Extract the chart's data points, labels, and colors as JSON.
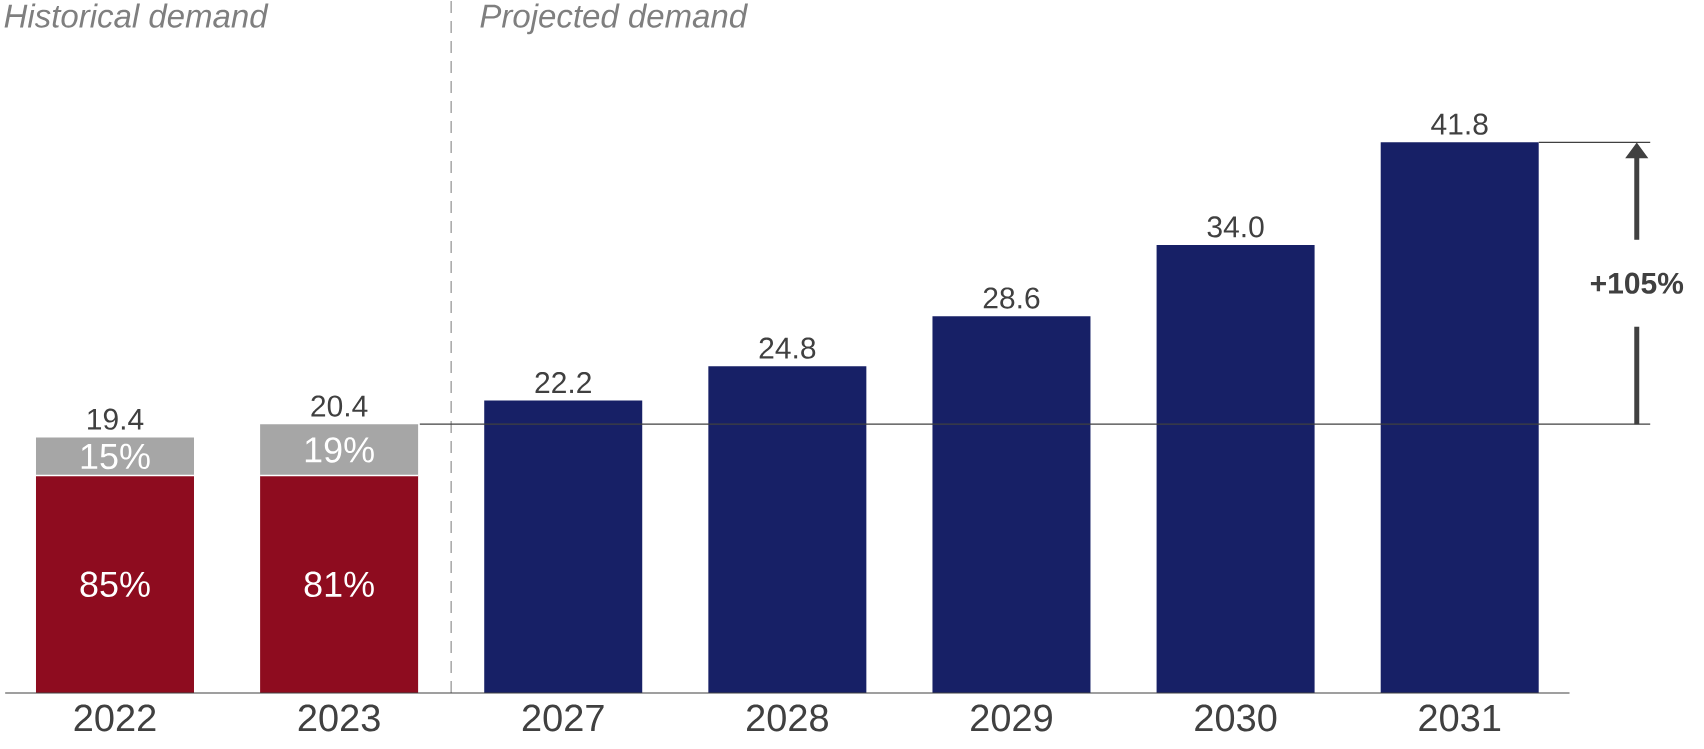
{
  "chart_data": {
    "type": "bar",
    "stacked": true,
    "categories": [
      "2022",
      "2023",
      "2027",
      "2028",
      "2029",
      "2030",
      "2031"
    ],
    "series": [
      {
        "color": "#8e0c1f",
        "values": [
          16.5,
          16.5,
          null,
          null,
          null,
          null,
          null
        ]
      },
      {
        "color": "#a6a6a6",
        "values": [
          2.9,
          3.9,
          null,
          null,
          null,
          null,
          null
        ]
      },
      {
        "color": "#172066",
        "values": [
          null,
          null,
          22.2,
          24.8,
          28.6,
          34.0,
          41.8
        ],
        "value_labels": [
          null,
          null,
          "22.2",
          "24.8",
          "28.6",
          "34.0",
          "41.8"
        ]
      }
    ],
    "totals": [
      "19.4",
      "20.4",
      null,
      null,
      null,
      null,
      null
    ],
    "ref_lines": [
      {
        "axis": "y",
        "value": 20.4,
        "color": "#404040",
        "line_style": "solid"
      }
    ],
    "annotations": [
      "Historical demand",
      "Projected demand",
      "+105%",
      "85%",
      "81%",
      "15%",
      "19%"
    ]
  }
}
